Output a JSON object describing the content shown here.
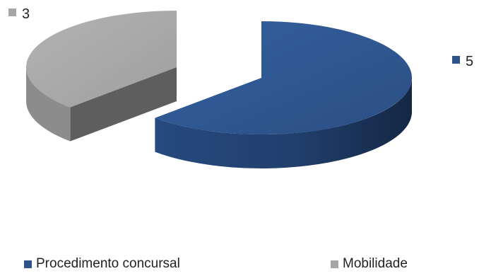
{
  "chart_data": {
    "type": "pie",
    "style": "3d-exploded",
    "series": [
      {
        "name": "Procedimento concursal",
        "value": 5,
        "label": "5",
        "color": "#2e5389"
      },
      {
        "name": "Mobilidade",
        "value": 3,
        "label": "3",
        "color": "#a6a6a6"
      }
    ],
    "legend": {
      "position": "bottom"
    }
  }
}
